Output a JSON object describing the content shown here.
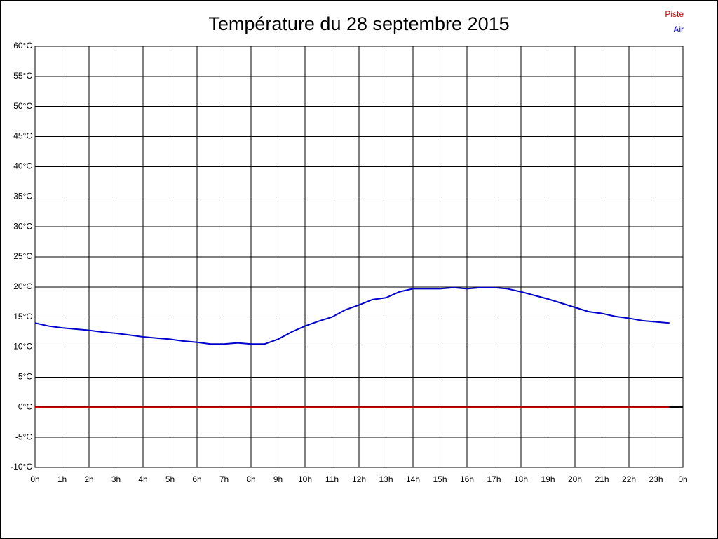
{
  "chart_data": {
    "type": "line",
    "title": "Température du 28 septembre 2015",
    "x": [
      0,
      0.5,
      1,
      1.5,
      2,
      2.5,
      3,
      3.5,
      4,
      4.5,
      5,
      5.5,
      6,
      6.5,
      7,
      7.5,
      8,
      8.5,
      9,
      9.5,
      10,
      10.5,
      11,
      11.5,
      12,
      12.5,
      13,
      13.5,
      14,
      14.5,
      15,
      15.5,
      16,
      16.5,
      17,
      17.5,
      18,
      18.5,
      19,
      19.5,
      20,
      20.5,
      21,
      21.5,
      22,
      22.5,
      23,
      23.5
    ],
    "series": [
      {
        "name": "Piste",
        "color": "#cc0000",
        "values": [
          0,
          0,
          0,
          0,
          0,
          0,
          0,
          0,
          0,
          0,
          0,
          0,
          0,
          0,
          0,
          0,
          0,
          0,
          0,
          0,
          0,
          0,
          0,
          0,
          0,
          0,
          0,
          0,
          0,
          0,
          0,
          0,
          0,
          0,
          0,
          0,
          0,
          0,
          0,
          0,
          0,
          0,
          0,
          0,
          0,
          0,
          0,
          0
        ]
      },
      {
        "name": "Air",
        "color": "#0000cc",
        "values": [
          14.0,
          13.5,
          13.2,
          13.0,
          12.8,
          12.5,
          12.3,
          12.0,
          11.7,
          11.5,
          11.3,
          11.0,
          10.8,
          10.5,
          10.5,
          10.7,
          10.5,
          10.5,
          11.3,
          12.5,
          13.5,
          14.3,
          15.0,
          16.2,
          17.0,
          17.9,
          18.2,
          19.2,
          19.7,
          19.7,
          19.7,
          19.9,
          19.7,
          19.9,
          19.9,
          19.7,
          19.2,
          18.6,
          18.0,
          17.3,
          16.6,
          15.9,
          15.6,
          15.1,
          14.8,
          14.4,
          14.2,
          14.0
        ]
      }
    ],
    "xlim": [
      0,
      24
    ],
    "xticks": [
      {
        "value": 0,
        "label": "0h"
      },
      {
        "value": 1,
        "label": "1h"
      },
      {
        "value": 2,
        "label": "2h"
      },
      {
        "value": 3,
        "label": "3h"
      },
      {
        "value": 4,
        "label": "4h"
      },
      {
        "value": 5,
        "label": "5h"
      },
      {
        "value": 6,
        "label": "6h"
      },
      {
        "value": 7,
        "label": "7h"
      },
      {
        "value": 8,
        "label": "8h"
      },
      {
        "value": 9,
        "label": "9h"
      },
      {
        "value": 10,
        "label": "10h"
      },
      {
        "value": 11,
        "label": "11h"
      },
      {
        "value": 12,
        "label": "12h"
      },
      {
        "value": 13,
        "label": "13h"
      },
      {
        "value": 14,
        "label": "14h"
      },
      {
        "value": 15,
        "label": "15h"
      },
      {
        "value": 16,
        "label": "16h"
      },
      {
        "value": 17,
        "label": "17h"
      },
      {
        "value": 18,
        "label": "18h"
      },
      {
        "value": 19,
        "label": "19h"
      },
      {
        "value": 20,
        "label": "20h"
      },
      {
        "value": 21,
        "label": "21h"
      },
      {
        "value": 22,
        "label": "22h"
      },
      {
        "value": 23,
        "label": "23h"
      },
      {
        "value": 24,
        "label": "0h"
      }
    ],
    "ylim": [
      -10,
      60
    ],
    "yticks": [
      {
        "value": 60,
        "label": "60°C"
      },
      {
        "value": 55,
        "label": "55°C"
      },
      {
        "value": 50,
        "label": "50°C"
      },
      {
        "value": 45,
        "label": "45°C"
      },
      {
        "value": 40,
        "label": "40°C"
      },
      {
        "value": 35,
        "label": "35°C"
      },
      {
        "value": 30,
        "label": "30°C"
      },
      {
        "value": 25,
        "label": "25°C"
      },
      {
        "value": 20,
        "label": "20°C"
      },
      {
        "value": 15,
        "label": "15°C"
      },
      {
        "value": 10,
        "label": "10°C"
      },
      {
        "value": 5,
        "label": "5°C"
      },
      {
        "value": 0,
        "label": "0°C"
      },
      {
        "value": -5,
        "label": "-5°C"
      },
      {
        "value": -10,
        "label": "-10°C"
      }
    ],
    "grid": true
  }
}
